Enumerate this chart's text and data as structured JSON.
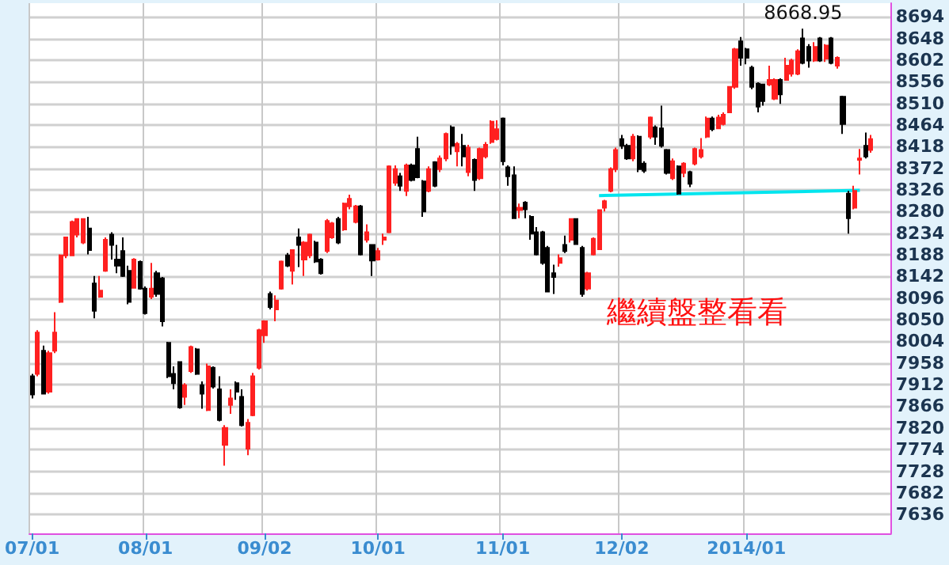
{
  "chart_data": {
    "type": "candlestick",
    "categories": [
      "07/01",
      null,
      null,
      null,
      null,
      null,
      null,
      null,
      null,
      null,
      null,
      null,
      null,
      null,
      null,
      null,
      null,
      null,
      null,
      null,
      "08/01",
      null,
      null,
      null,
      null,
      null,
      null,
      null,
      null,
      null,
      null,
      null,
      null,
      null,
      null,
      null,
      null,
      null,
      null,
      null,
      null,
      "09/02",
      null,
      null,
      null,
      null,
      null,
      null,
      null,
      null,
      null,
      null,
      null,
      null,
      null,
      null,
      null,
      null,
      null,
      null,
      null,
      "10/01",
      null,
      null,
      null,
      null,
      null,
      null,
      null,
      null,
      null,
      null,
      null,
      null,
      null,
      null,
      null,
      null,
      null,
      null,
      null,
      null,
      null,
      "11/01",
      null,
      null,
      null,
      null,
      null,
      null,
      null,
      null,
      null,
      null,
      null,
      null,
      null,
      null,
      null,
      null,
      null,
      null,
      null,
      null,
      "12/02",
      null,
      null,
      null,
      null,
      null,
      null,
      null,
      null,
      null,
      null,
      null,
      null,
      null,
      null,
      null,
      null,
      null,
      null,
      null,
      null,
      null,
      "2014/01",
      null,
      null,
      null,
      null,
      null,
      null,
      null,
      null,
      null,
      null,
      null,
      null,
      null,
      null,
      null,
      null,
      null,
      null,
      null,
      null,
      null,
      null
    ],
    "ohlc": [
      [
        7930,
        7935,
        7883,
        7891
      ],
      [
        7935,
        8028,
        7930,
        8023
      ],
      [
        7984,
        7995,
        7891,
        7893
      ],
      [
        7897,
        7984,
        7893,
        7979
      ],
      [
        7984,
        8066,
        7979,
        8023
      ],
      [
        8088,
        8189,
        8086,
        8187
      ],
      [
        8187,
        8225,
        8181,
        8225
      ],
      [
        8187,
        8261,
        8185,
        8258
      ],
      [
        8231,
        8266,
        8225,
        8264
      ],
      [
        8214,
        8266,
        8211,
        8264
      ],
      [
        8244,
        8269,
        8189,
        8198
      ],
      [
        8127,
        8143,
        8053,
        8069
      ],
      [
        8099,
        8143,
        8097,
        8112
      ],
      [
        8154,
        8225,
        8152,
        8220
      ],
      [
        8231,
        8236,
        8178,
        8209
      ],
      [
        8178,
        8209,
        8149,
        8165
      ],
      [
        8196,
        8225,
        8141,
        8143
      ],
      [
        8154,
        8165,
        8083,
        8088
      ],
      [
        8118,
        8181,
        8116,
        8178
      ],
      [
        8173,
        8176,
        8114,
        8116
      ],
      [
        8116,
        8121,
        8061,
        8064
      ],
      [
        8099,
        8171,
        8094,
        8116
      ],
      [
        8149,
        8154,
        8099,
        8105
      ],
      [
        8138,
        8141,
        8036,
        8047
      ],
      [
        8001,
        8003,
        7926,
        7930
      ],
      [
        7935,
        7951,
        7902,
        7915
      ],
      [
        7960,
        7962,
        7861,
        7864
      ],
      [
        7886,
        7915,
        7869,
        7911
      ],
      [
        7941,
        7995,
        7937,
        7992
      ],
      [
        7987,
        7990,
        7933,
        7935
      ],
      [
        7911,
        7919,
        7861,
        7893
      ],
      [
        7858,
        7957,
        7856,
        7951
      ],
      [
        7948,
        7951,
        7904,
        7908
      ],
      [
        7902,
        7930,
        7834,
        7837
      ],
      [
        7784,
        7826,
        7740,
        7820
      ],
      [
        7869,
        7902,
        7850,
        7883
      ],
      [
        7915,
        7919,
        7880,
        7897
      ],
      [
        7886,
        7902,
        7823,
        7826
      ],
      [
        7776,
        7839,
        7762,
        7831
      ],
      [
        7847,
        7937,
        7845,
        7930
      ],
      [
        7948,
        8031,
        7944,
        8028
      ],
      [
        8017,
        8049,
        8001,
        8047
      ],
      [
        8105,
        8110,
        8072,
        8077
      ],
      [
        8072,
        8102,
        8047,
        8091
      ],
      [
        8116,
        8176,
        8114,
        8174
      ],
      [
        8187,
        8192,
        8162,
        8165
      ],
      [
        8154,
        8200,
        8125,
        8198
      ],
      [
        8225,
        8244,
        8162,
        8209
      ],
      [
        8178,
        8217,
        8143,
        8214
      ],
      [
        8187,
        8233,
        8181,
        8231
      ],
      [
        8214,
        8218,
        8171,
        8174
      ],
      [
        8178,
        8181,
        8146,
        8149
      ],
      [
        8196,
        8264,
        8192,
        8260
      ],
      [
        8225,
        8258,
        8222,
        8255
      ],
      [
        8264,
        8269,
        8211,
        8214
      ],
      [
        8242,
        8299,
        8239,
        8297
      ],
      [
        8291,
        8316,
        8285,
        8307
      ],
      [
        8258,
        8294,
        8255,
        8291
      ],
      [
        8291,
        8294,
        8187,
        8189
      ],
      [
        8220,
        8253,
        8214,
        8236
      ],
      [
        8209,
        8211,
        8143,
        8176
      ],
      [
        8178,
        8203,
        8176,
        8196
      ],
      [
        8220,
        8233,
        8209,
        8225
      ],
      [
        8236,
        8378,
        8234,
        8376
      ],
      [
        8341,
        8378,
        8335,
        8370
      ],
      [
        8355,
        8362,
        8324,
        8335
      ],
      [
        8324,
        8382,
        8313,
        8378
      ],
      [
        8378,
        8382,
        8344,
        8347
      ],
      [
        8413,
        8439,
        8351,
        8353
      ],
      [
        8344,
        8347,
        8269,
        8280
      ],
      [
        8324,
        8376,
        8321,
        8370
      ],
      [
        8385,
        8387,
        8332,
        8335
      ],
      [
        8370,
        8399,
        8364,
        8393
      ],
      [
        8393,
        8448,
        8387,
        8445
      ],
      [
        8459,
        8463,
        8401,
        8420
      ],
      [
        8408,
        8428,
        8376,
        8424
      ],
      [
        8420,
        8445,
        8376,
        8397
      ],
      [
        8364,
        8422,
        8355,
        8416
      ],
      [
        8390,
        8393,
        8324,
        8347
      ],
      [
        8351,
        8416,
        8347,
        8413
      ],
      [
        8397,
        8428,
        8393,
        8422
      ],
      [
        8428,
        8474,
        8424,
        8471
      ],
      [
        8434,
        8474,
        8431,
        8455
      ],
      [
        8478,
        8480,
        8378,
        8387
      ],
      [
        8374,
        8378,
        8335,
        8355
      ],
      [
        8357,
        8376,
        8264,
        8266
      ],
      [
        8283,
        8297,
        8266,
        8288
      ],
      [
        8299,
        8302,
        8266,
        8285
      ],
      [
        8269,
        8272,
        8220,
        8233
      ],
      [
        8236,
        8247,
        8187,
        8189
      ],
      [
        8236,
        8239,
        8167,
        8171
      ],
      [
        8203,
        8207,
        8108,
        8110
      ],
      [
        8149,
        8167,
        8105,
        8141
      ],
      [
        8171,
        8189,
        8163,
        8181
      ],
      [
        8209,
        8229,
        8192,
        8196
      ],
      [
        8220,
        8266,
        8214,
        8264
      ],
      [
        8264,
        8266,
        8209,
        8211
      ],
      [
        8203,
        8207,
        8099,
        8105
      ],
      [
        8116,
        8152,
        8112,
        8149
      ],
      [
        8189,
        8225,
        8187,
        8222
      ],
      [
        8200,
        8285,
        8198,
        8283
      ],
      [
        8288,
        8305,
        8280,
        8302
      ],
      [
        8324,
        8374,
        8321,
        8370
      ],
      [
        8370,
        8416,
        8364,
        8411
      ],
      [
        8434,
        8443,
        8413,
        8420
      ],
      [
        8420,
        8424,
        8390,
        8393
      ],
      [
        8393,
        8445,
        8387,
        8439
      ],
      [
        8439,
        8442,
        8364,
        8370
      ],
      [
        8382,
        8387,
        8362,
        8367
      ],
      [
        8439,
        8482,
        8434,
        8480
      ],
      [
        8459,
        8463,
        8422,
        8439
      ],
      [
        8457,
        8505,
        8416,
        8420
      ],
      [
        8411,
        8413,
        8359,
        8362
      ],
      [
        8351,
        8393,
        8347,
        8387
      ],
      [
        8376,
        8378,
        8316,
        8318
      ],
      [
        8362,
        8385,
        8353,
        8382
      ],
      [
        8364,
        8367,
        8332,
        8339
      ],
      [
        8382,
        8416,
        8378,
        8413
      ],
      [
        8397,
        8436,
        8393,
        8411
      ],
      [
        8439,
        8482,
        8436,
        8478
      ],
      [
        8478,
        8482,
        8451,
        8455
      ],
      [
        8457,
        8486,
        8455,
        8480
      ],
      [
        8466,
        8491,
        8463,
        8486
      ],
      [
        8491,
        8547,
        8489,
        8545
      ],
      [
        8545,
        8628,
        8541,
        8625
      ],
      [
        8642,
        8651,
        8590,
        8607
      ],
      [
        8625,
        8628,
        8593,
        8607
      ],
      [
        8586,
        8590,
        8540,
        8545
      ],
      [
        8552,
        8555,
        8491,
        8503
      ],
      [
        8550,
        8552,
        8505,
        8515
      ],
      [
        8550,
        8590,
        8547,
        8560
      ],
      [
        8520,
        8563,
        8517,
        8560
      ],
      [
        8560,
        8563,
        8509,
        8529
      ],
      [
        8560,
        8607,
        8558,
        8590
      ],
      [
        8573,
        8605,
        8567,
        8601
      ],
      [
        8573,
        8625,
        8570,
        8621
      ],
      [
        8648,
        8668.95,
        8593,
        8596
      ],
      [
        8630,
        8636,
        8586,
        8601
      ],
      [
        8601,
        8640,
        8598,
        8630
      ],
      [
        8648,
        8651,
        8598,
        8601
      ],
      [
        8605,
        8636,
        8598,
        8633
      ],
      [
        8648,
        8651,
        8593,
        8596
      ],
      [
        8590,
        8610,
        8584,
        8607
      ],
      [
        8524,
        8526,
        8445,
        8466
      ],
      [
        8318,
        8324,
        8233,
        8266
      ],
      [
        8288,
        8335,
        8285,
        8324
      ],
      [
        8390,
        8413,
        8359,
        8393
      ],
      [
        8420,
        8448,
        8393,
        8397
      ],
      [
        8411,
        8443,
        8405,
        8434
      ]
    ],
    "series": [
      {
        "type": "line",
        "color": "#00e5ee",
        "values": [
          null,
          null,
          null,
          null,
          null,
          null,
          null,
          null,
          null,
          null,
          null,
          null,
          null,
          null,
          null,
          null,
          null,
          null,
          null,
          null,
          null,
          null,
          null,
          null,
          null,
          null,
          null,
          null,
          null,
          null,
          null,
          null,
          null,
          null,
          null,
          null,
          null,
          null,
          null,
          null,
          null,
          null,
          null,
          null,
          null,
          null,
          null,
          null,
          null,
          null,
          null,
          null,
          null,
          null,
          null,
          null,
          null,
          null,
          null,
          null,
          null,
          null,
          null,
          null,
          null,
          null,
          null,
          null,
          null,
          null,
          null,
          null,
          null,
          null,
          null,
          null,
          null,
          null,
          null,
          null,
          null,
          null,
          null,
          null,
          null,
          null,
          null,
          null,
          null,
          null,
          null,
          null,
          null,
          null,
          null,
          null,
          null,
          null,
          null,
          null,
          8314,
          null,
          null,
          null,
          null,
          null,
          null,
          null,
          null,
          null,
          null,
          null,
          null,
          null,
          null,
          null,
          null,
          null,
          null,
          null,
          null,
          null,
          null,
          null,
          null,
          null,
          null,
          null,
          null,
          null,
          null,
          null,
          null,
          null,
          null,
          null,
          null,
          null,
          null,
          null,
          null,
          null,
          null,
          null,
          null,
          null,
          8325,
          null,
          null
        ]
      }
    ],
    "ylim": [
      7596,
      8723
    ],
    "yticks": [
      7636,
      7682,
      7728,
      7774,
      7820,
      7866,
      7912,
      7958,
      8004,
      8050,
      8096,
      8142,
      8188,
      8234,
      8280,
      8326,
      8372,
      8418,
      8464,
      8510,
      8556,
      8602,
      8648,
      8694
    ],
    "grid": true,
    "annotations": [
      {
        "text": "8668.95",
        "y": 8668.95
      },
      "繼續盤整看看"
    ]
  }
}
